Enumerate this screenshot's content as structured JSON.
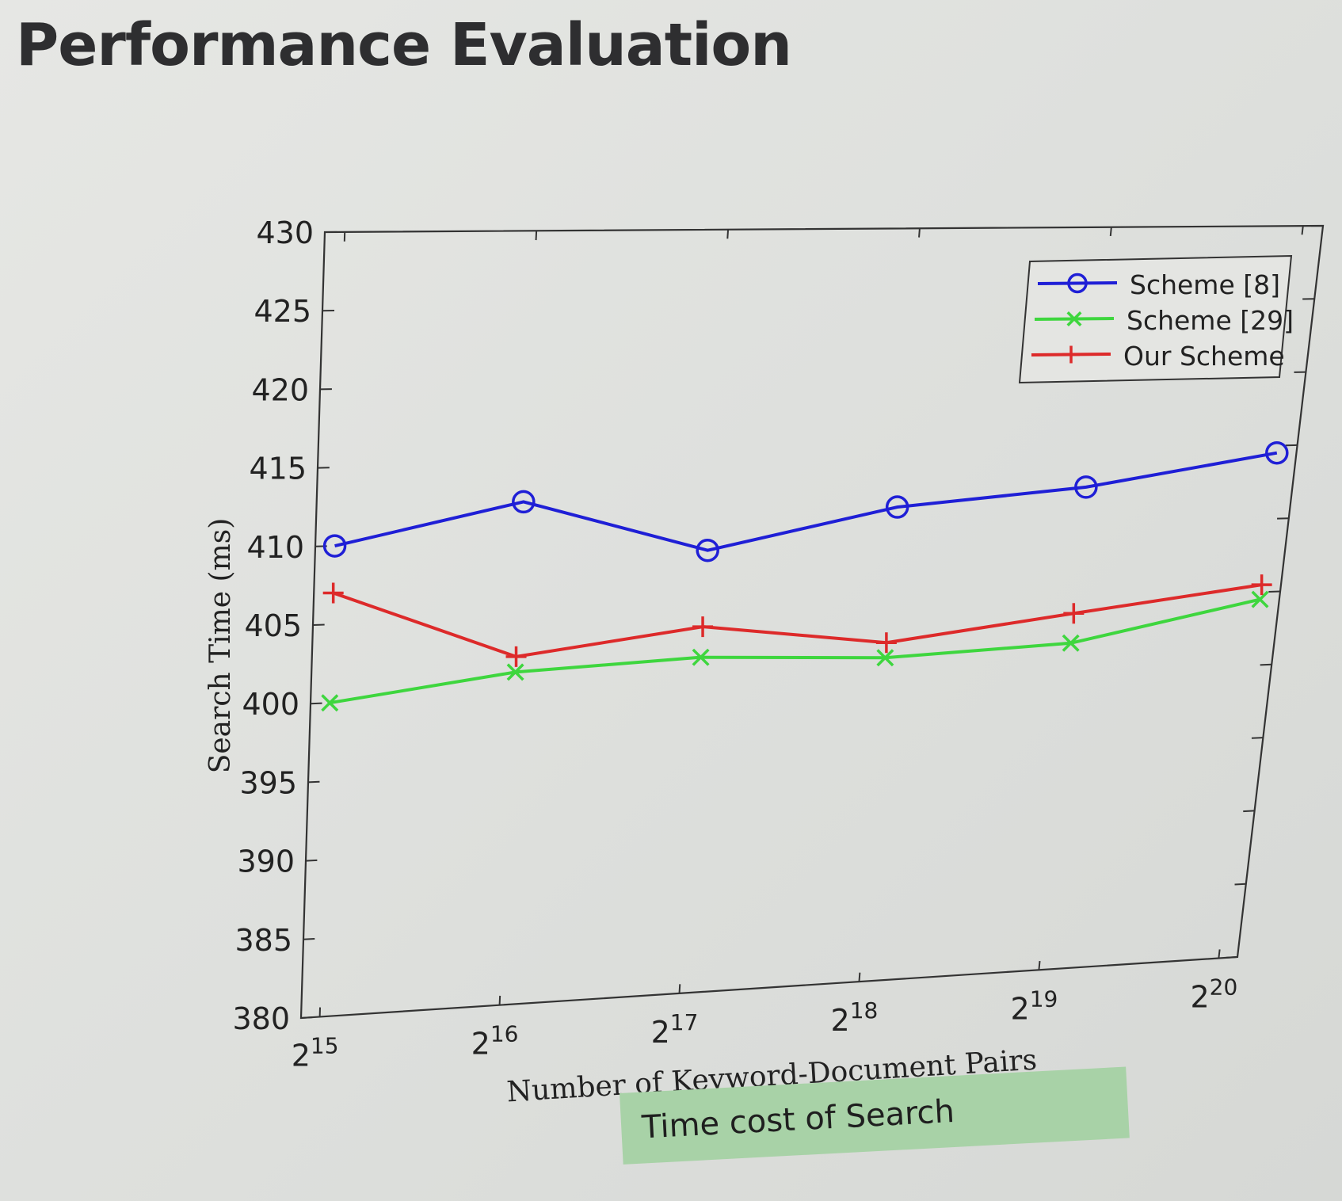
{
  "slide": {
    "title": "Performance Evaluation"
  },
  "caption": "Time cost of Search",
  "chart_data": {
    "type": "line",
    "title": "",
    "xlabel": "Number of Keyword-Document Pairs",
    "ylabel": "Search Time (ms)",
    "x_base": "2",
    "x_exponents": [
      "15",
      "16",
      "17",
      "18",
      "19",
      "20"
    ],
    "ylim": [
      380,
      430
    ],
    "y_ticks": [
      "380",
      "385",
      "390",
      "395",
      "400",
      "405",
      "410",
      "415",
      "420",
      "425",
      "430"
    ],
    "grid": false,
    "legend_position": "top-right",
    "series": [
      {
        "name": "Scheme [8]",
        "marker": "circle",
        "color": "#1f1fd6",
        "values": [
          410,
          412.5,
          409,
          411.5,
          412.5,
          414.5
        ]
      },
      {
        "name": "Scheme [29]",
        "marker": "x",
        "color": "#3ed63e",
        "values": [
          400,
          401.5,
          402,
          401.5,
          402,
          404.5
        ]
      },
      {
        "name": "Our Scheme",
        "marker": "plus",
        "color": "#dd2a2a",
        "values": [
          407,
          402.5,
          404,
          402.5,
          404,
          405.5
        ]
      }
    ]
  }
}
